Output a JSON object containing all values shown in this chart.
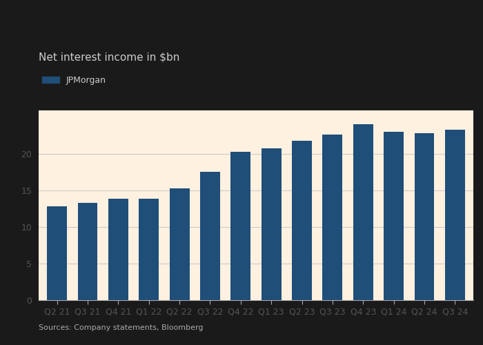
{
  "categories": [
    "Q2 21",
    "Q3 21",
    "Q4 21",
    "Q1 22",
    "Q2 22",
    "Q3 22",
    "Q4 22",
    "Q1 23",
    "Q2 23",
    "Q3 23",
    "Q4 23",
    "Q1 24",
    "Q2 24",
    "Q3 24"
  ],
  "values": [
    12.9,
    13.3,
    13.9,
    13.9,
    15.3,
    17.6,
    20.3,
    20.8,
    21.8,
    22.7,
    24.1,
    23.1,
    22.9,
    23.4
  ],
  "bar_color": "#1f4e79",
  "title": "Net interest income in $bn",
  "legend_label": "JPMorgan",
  "ylim": [
    0,
    26
  ],
  "yticks": [
    0,
    5,
    10,
    15,
    20
  ],
  "source": "Sources: Company statements, Bloomberg",
  "background_color": "#FFF1E0",
  "chart_bg": "#FFF1E0",
  "top_bg": "#1a1a1a",
  "grid_color": "#cccccc",
  "title_fontsize": 11,
  "tick_fontsize": 9,
  "source_fontsize": 8,
  "bar_width": 0.65
}
